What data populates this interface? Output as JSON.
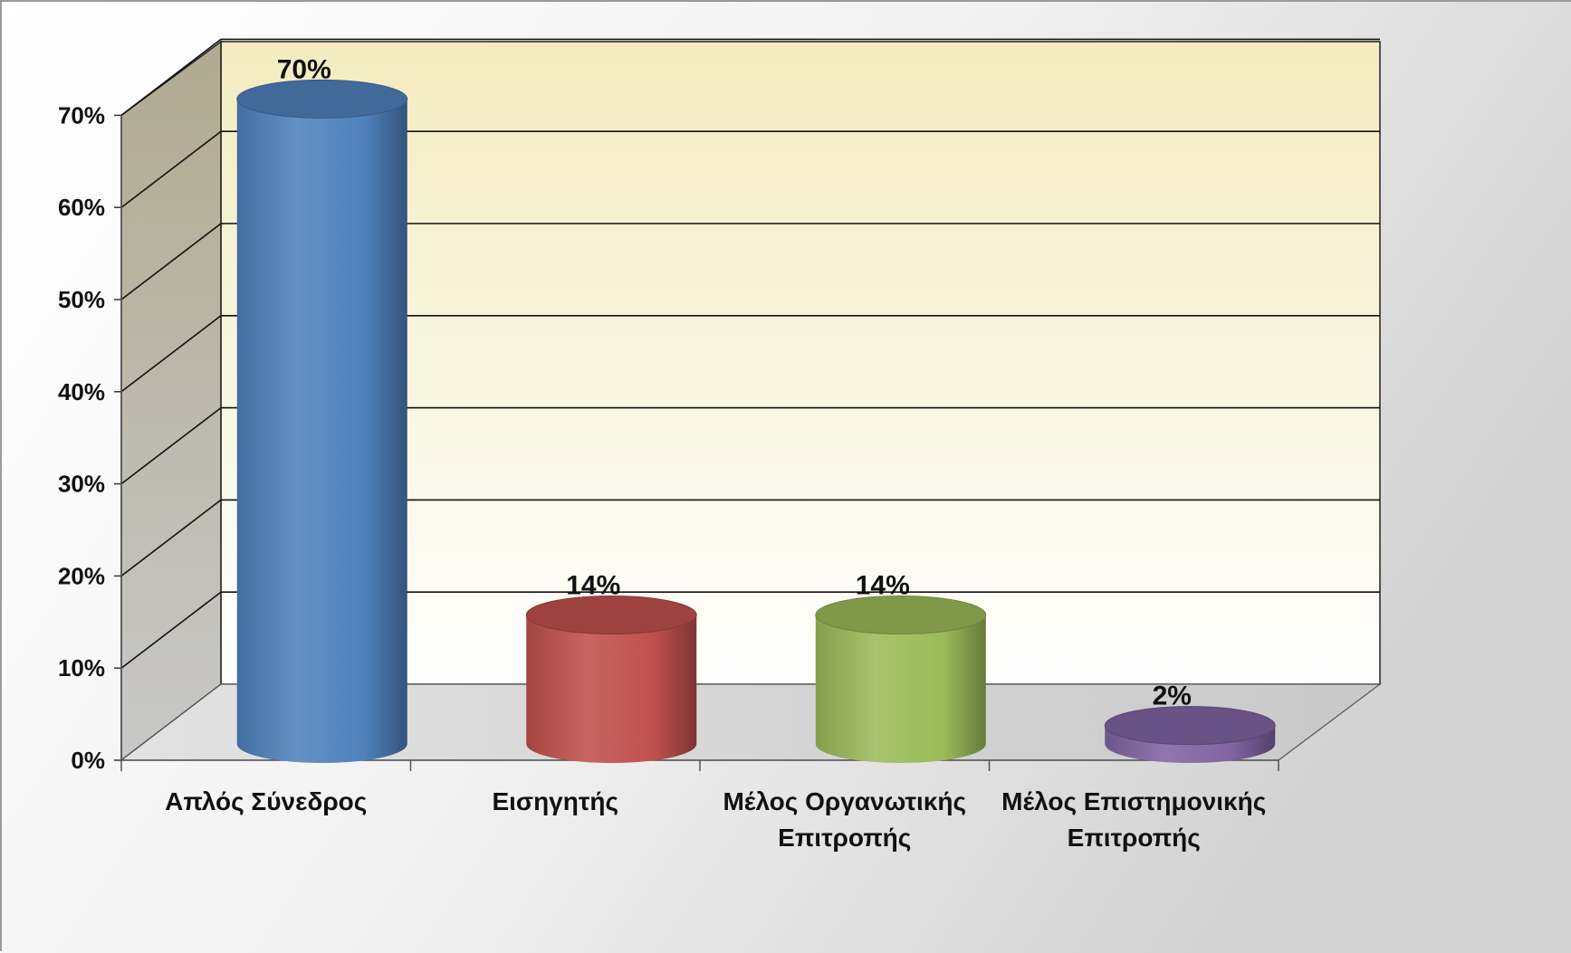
{
  "chart_data": {
    "type": "bar",
    "style": "3d-cylinder",
    "categories": [
      [
        "Απλός Σύνεδρος"
      ],
      [
        "Εισηγητής"
      ],
      [
        "Μέλος Οργανωτικής",
        "Επιτροπής"
      ],
      [
        "Μέλος Επιστημονικής",
        "Επιτροπής"
      ]
    ],
    "values": [
      70,
      14,
      14,
      2
    ],
    "data_labels": [
      "70%",
      "14%",
      "14%",
      "2%"
    ],
    "ylim": [
      0,
      70
    ],
    "ytick_step": 10,
    "yticks": [
      "0%",
      "10%",
      "20%",
      "30%",
      "40%",
      "50%",
      "60%",
      "70%"
    ],
    "title": "",
    "xlabel": "",
    "ylabel": "",
    "grid": true,
    "legend": "none",
    "colors": {
      "bars": [
        "#4f81bd",
        "#c0504d",
        "#9bbb59",
        "#8064a2"
      ],
      "back_wall_top": "#f3ecbf",
      "back_wall_bottom": "#ffffff",
      "side_wall": "#a9a38a",
      "floor": "#cfcfcf",
      "background": "#e6e6e6"
    }
  }
}
